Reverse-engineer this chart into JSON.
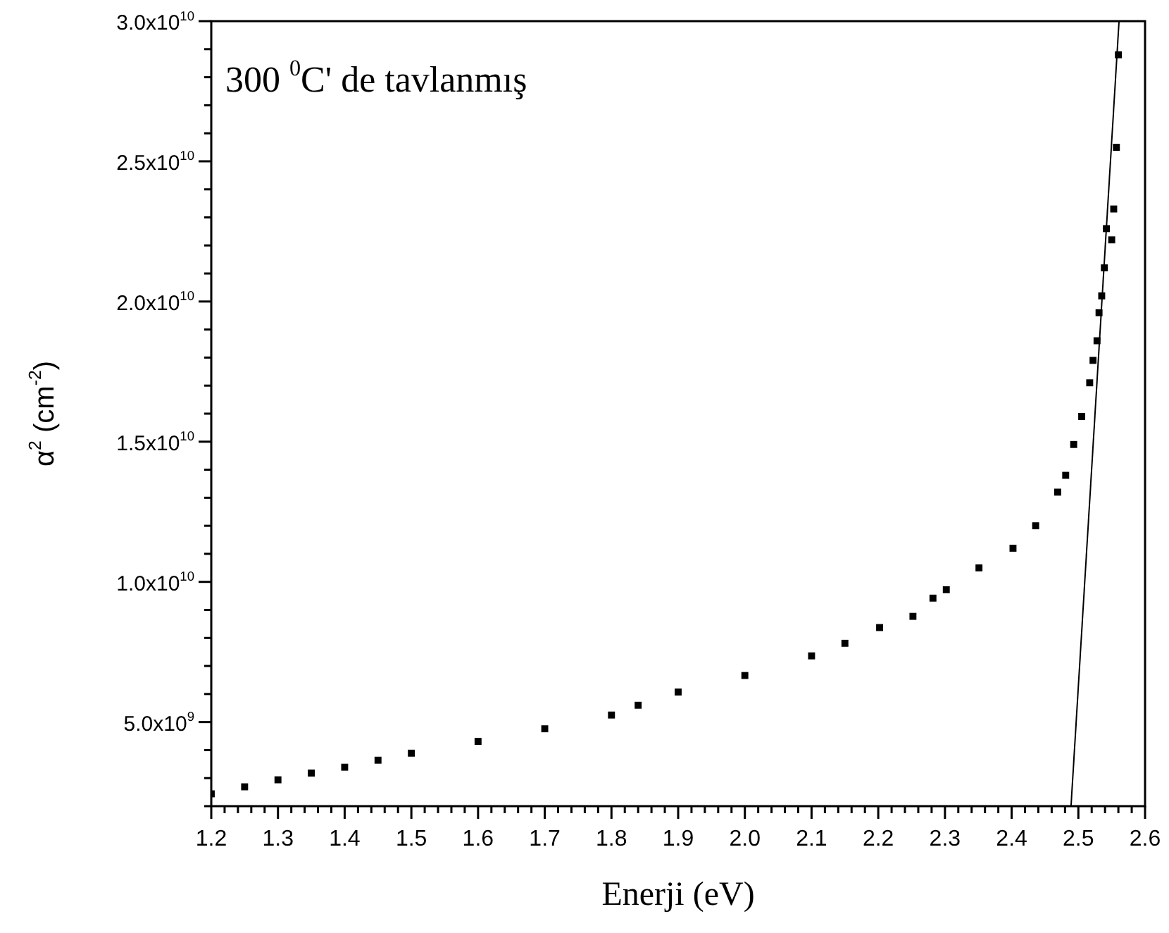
{
  "chart_data": {
    "type": "scatter",
    "xlabel": "Enerji (eV)",
    "ylabel": "α$^{2}$ (cm$^{-2}$)",
    "annotations": [
      "300 $^{0}$C' de tavlanmış"
    ],
    "xlim": [
      1.2,
      2.6
    ],
    "ylim": [
      2000000000,
      30000000000
    ],
    "xticks": [
      1.2,
      {
        "value": 1.22,
        "label": null
      },
      {
        "value": 1.24,
        "label": null
      },
      {
        "value": 1.26,
        "label": null
      },
      {
        "value": 1.28,
        "label": null
      },
      1.3,
      {
        "value": 1.32,
        "label": null
      },
      {
        "value": 1.34,
        "label": null
      },
      {
        "value": 1.36,
        "label": null
      },
      {
        "value": 1.38,
        "label": null
      },
      1.4,
      {
        "value": 1.42,
        "label": null
      },
      {
        "value": 1.44,
        "label": null
      },
      {
        "value": 1.46,
        "label": null
      },
      {
        "value": 1.48,
        "label": null
      },
      1.5,
      {
        "value": 1.52,
        "label": null
      },
      {
        "value": 1.54,
        "label": null
      },
      {
        "value": 1.56,
        "label": null
      },
      {
        "value": 1.58,
        "label": null
      },
      1.6,
      {
        "value": 1.62,
        "label": null
      },
      {
        "value": 1.64,
        "label": null
      },
      {
        "value": 1.66,
        "label": null
      },
      {
        "value": 1.68,
        "label": null
      },
      1.7,
      {
        "value": 1.72,
        "label": null
      },
      {
        "value": 1.74,
        "label": null
      },
      {
        "value": 1.76,
        "label": null
      },
      {
        "value": 1.78,
        "label": null
      },
      1.8,
      {
        "value": 1.82,
        "label": null
      },
      {
        "value": 1.84,
        "label": null
      },
      {
        "value": 1.86,
        "label": null
      },
      {
        "value": 1.88,
        "label": null
      },
      1.9,
      {
        "value": 1.92,
        "label": null
      },
      {
        "value": 1.94,
        "label": null
      },
      {
        "value": 1.96,
        "label": null
      },
      {
        "value": 1.98,
        "label": null
      },
      {
        "value": 2.0,
        "label": "2.0"
      },
      {
        "value": 2.02,
        "label": null
      },
      {
        "value": 2.04,
        "label": null
      },
      {
        "value": 2.06,
        "label": null
      },
      {
        "value": 2.08,
        "label": null
      },
      2.1,
      {
        "value": 2.12,
        "label": null
      },
      {
        "value": 2.14,
        "label": null
      },
      {
        "value": 2.16,
        "label": null
      },
      {
        "value": 2.18,
        "label": null
      },
      2.2,
      {
        "value": 2.22,
        "label": null
      },
      {
        "value": 2.24,
        "label": null
      },
      {
        "value": 2.26,
        "label": null
      },
      {
        "value": 2.28,
        "label": null
      },
      2.3,
      {
        "value": 2.32,
        "label": null
      },
      {
        "value": 2.34,
        "label": null
      },
      {
        "value": 2.36,
        "label": null
      },
      {
        "value": 2.38,
        "label": null
      },
      2.4,
      {
        "value": 2.42,
        "label": null
      },
      {
        "value": 2.44,
        "label": null
      },
      {
        "value": 2.46,
        "label": null
      },
      {
        "value": 2.48,
        "label": null
      },
      2.5,
      {
        "value": 2.52,
        "label": null
      },
      {
        "value": 2.54,
        "label": null
      },
      {
        "value": 2.56,
        "label": null
      },
      {
        "value": 2.58,
        "label": null
      },
      2.6
    ],
    "yticks": [
      {
        "value": 2000000000,
        "label": null
      },
      {
        "value": 3000000000,
        "label": null
      },
      {
        "value": 4000000000,
        "label": null
      },
      {
        "value": 5000000000,
        "label": "5.0x10$^{9}$"
      },
      {
        "value": 6000000000,
        "label": null
      },
      {
        "value": 7000000000,
        "label": null
      },
      {
        "value": 8000000000,
        "label": null
      },
      {
        "value": 9000000000,
        "label": null
      },
      {
        "value": 10000000000,
        "label": "1.0x10$^{10}$"
      },
      {
        "value": 11000000000,
        "label": null
      },
      {
        "value": 12000000000,
        "label": null
      },
      {
        "value": 13000000000,
        "label": null
      },
      {
        "value": 14000000000,
        "label": null
      },
      {
        "value": 15000000000,
        "label": "1.5x10$^{10}$"
      },
      {
        "value": 16000000000,
        "label": null
      },
      {
        "value": 17000000000,
        "label": null
      },
      {
        "value": 18000000000,
        "label": null
      },
      {
        "value": 19000000000,
        "label": null
      },
      {
        "value": 20000000000,
        "label": "2.0x10$^{10}$"
      },
      {
        "value": 21000000000,
        "label": null
      },
      {
        "value": 22000000000,
        "label": null
      },
      {
        "value": 23000000000,
        "label": null
      },
      {
        "value": 24000000000,
        "label": null
      },
      {
        "value": 25000000000,
        "label": "2.5x10$^{10}$"
      },
      {
        "value": 26000000000,
        "label": null
      },
      {
        "value": 27000000000,
        "label": null
      },
      {
        "value": 28000000000,
        "label": null
      },
      {
        "value": 29000000000,
        "label": null
      },
      {
        "value": 30000000000,
        "label": "3.0x10$^{10}$"
      }
    ],
    "grid": false,
    "legend": false,
    "marker": "square",
    "series": [
      {
        "color": "#000000",
        "x": [
          1.2,
          1.25,
          1.3,
          1.35,
          1.4,
          1.45,
          1.5,
          1.6,
          1.7,
          1.8,
          1.84,
          1.9,
          2.0,
          2.1,
          2.15,
          2.202,
          2.252,
          2.282,
          2.302,
          2.351,
          2.402,
          2.436,
          2.469,
          2.481,
          2.493,
          2.505,
          2.517,
          2.522,
          2.528,
          2.531,
          2.535,
          2.539,
          2.542,
          2.55,
          2.553,
          2.557,
          2.56
        ],
        "values": [
          2440000000,
          2690000000,
          2940000000,
          3180000000,
          3390000000,
          3640000000,
          3890000000,
          4310000000,
          4760000000,
          5250000000,
          5600000000,
          6070000000,
          6660000000,
          7360000000,
          7810000000,
          8370000000,
          8770000000,
          9420000000,
          9720000000,
          10500000000,
          11200000000,
          12000000000,
          13200000000,
          13800000000,
          14900000000,
          15900000000,
          17100000000,
          17900000000,
          18600000000,
          19600000000,
          20200000000,
          21200000000,
          22600000000,
          22200000000,
          23300000000,
          25500000000,
          28800000000
        ]
      },
      {
        "type": "line",
        "color": "#000000",
        "marker": "none",
        "x": [
          2.489,
          2.561
        ],
        "values": [
          2000000000,
          30000000000
        ]
      }
    ]
  }
}
